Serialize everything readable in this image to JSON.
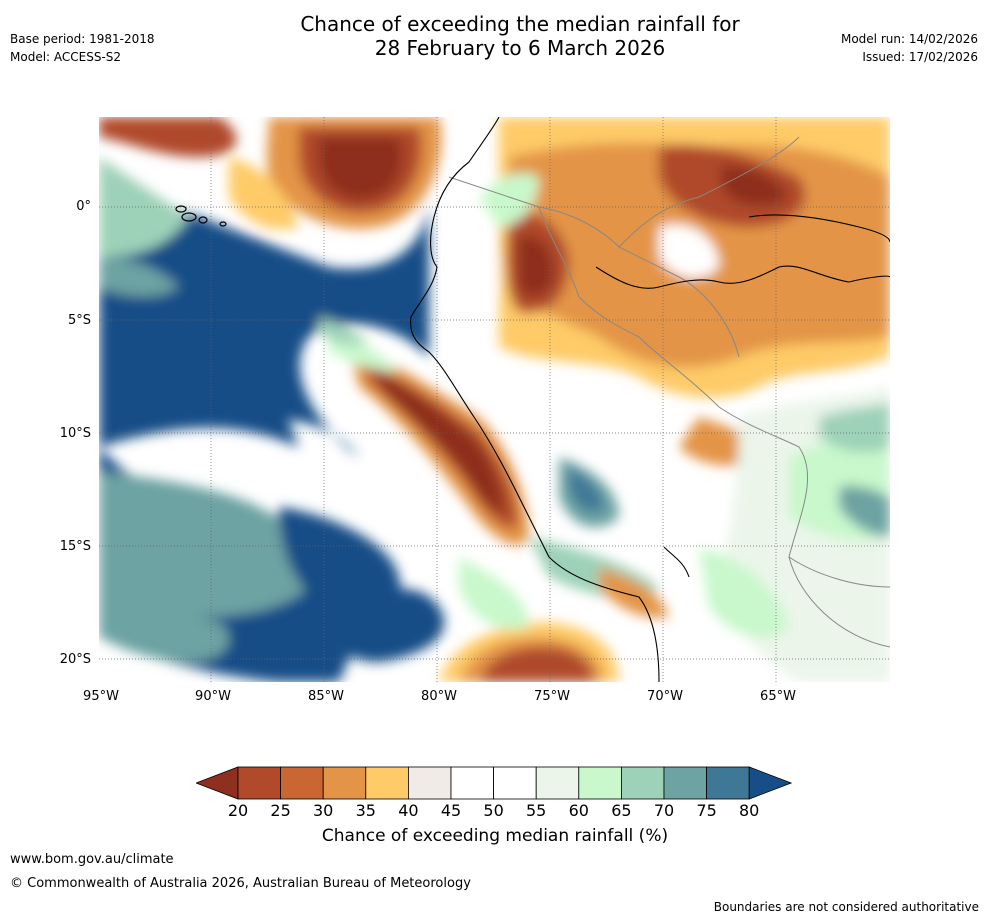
{
  "title": {
    "line1": "Chance of exceeding the median rainfall for",
    "line2": "28 February to 6 March 2026"
  },
  "meta": {
    "base_period": "Base period: 1981-2018",
    "model": "Model: ACCESS-S2",
    "model_run": "Model run: 14/02/2026",
    "issued": "Issued: 17/02/2026"
  },
  "map": {
    "lat_labels": [
      "0°",
      "5°S",
      "10°S",
      "15°S",
      "20°S"
    ],
    "lon_labels": [
      "95°W",
      "90°W",
      "85°W",
      "80°W",
      "75°W",
      "70°W",
      "65°W"
    ]
  },
  "colorbar": {
    "ticks": [
      "20",
      "25",
      "30",
      "35",
      "40",
      "45",
      "50",
      "55",
      "60",
      "65",
      "70",
      "75",
      "80"
    ],
    "colors": [
      "#8e2f1f",
      "#b04a2a",
      "#c96632",
      "#e39447",
      "#fecb68",
      "#f0ebe6",
      "#ffffff",
      "#ffffff",
      "#ebf5ea",
      "#c8f8cb",
      "#9dd1b8",
      "#6da3a3",
      "#3f7897",
      "#174e87"
    ],
    "label": "Chance of exceeding median rainfall (%)"
  },
  "footer": {
    "url": "www.bom.gov.au/climate",
    "copyright": "© Commonwealth of Australia 2026, Australian Bureau of Meteorology",
    "note": "Boundaries are not considered authoritative"
  }
}
